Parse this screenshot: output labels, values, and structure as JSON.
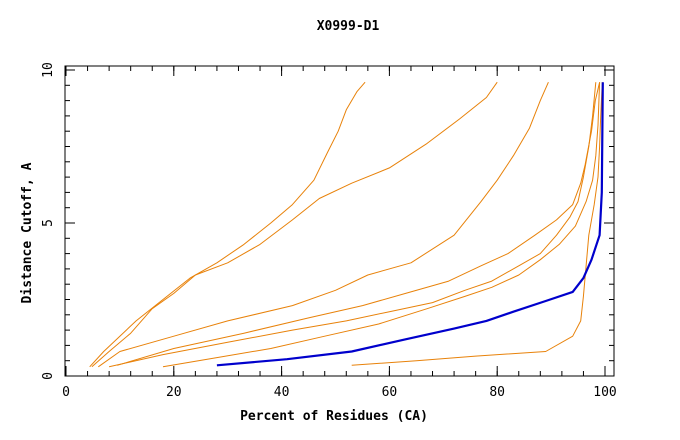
{
  "chart_data": {
    "type": "line",
    "title": "X0999-D1",
    "xlabel": "Percent of Residues (CA)",
    "ylabel": "Distance Cutoff, A",
    "xlim": [
      0,
      100
    ],
    "ylim": [
      0,
      10
    ],
    "x_ticks": [
      0,
      20,
      40,
      60,
      80,
      100
    ],
    "y_ticks": [
      0,
      5,
      10
    ],
    "x_tick_labels": [
      "0",
      "20",
      "40",
      "60",
      "80",
      "100"
    ],
    "y_tick_labels": [
      "0",
      "5",
      "10"
    ],
    "grid": false,
    "legend": "none",
    "colors": {
      "model": "#e8820a",
      "highlight": "#0000cc",
      "axis": "#000000"
    },
    "series": [
      {
        "highlight": false,
        "points": [
          [
            4.4,
            0.3
          ],
          [
            7,
            0.8
          ],
          [
            13,
            1.8
          ],
          [
            18,
            2.5
          ],
          [
            23,
            3.2
          ],
          [
            28,
            3.7
          ],
          [
            33,
            4.3
          ],
          [
            38,
            5.0
          ],
          [
            42,
            5.6
          ],
          [
            46,
            6.4
          ],
          [
            48.5,
            7.3
          ],
          [
            50.5,
            8.0
          ],
          [
            52,
            8.7
          ],
          [
            54,
            9.3
          ],
          [
            55.5,
            9.6
          ]
        ]
      },
      {
        "highlight": false,
        "points": [
          [
            4.8,
            0.3
          ],
          [
            8,
            0.8
          ],
          [
            12,
            1.4
          ],
          [
            16,
            2.2
          ],
          [
            20,
            2.7
          ],
          [
            24,
            3.3
          ],
          [
            30,
            3.7
          ],
          [
            36,
            4.3
          ],
          [
            42,
            5.1
          ],
          [
            47,
            5.8
          ],
          [
            53,
            6.3
          ],
          [
            60,
            6.8
          ],
          [
            67,
            7.6
          ],
          [
            73,
            8.4
          ],
          [
            78,
            9.1
          ],
          [
            80,
            9.6
          ]
        ]
      },
      {
        "highlight": false,
        "points": [
          [
            6,
            0.3
          ],
          [
            10,
            0.8
          ],
          [
            20,
            1.3
          ],
          [
            30,
            1.8
          ],
          [
            42,
            2.3
          ],
          [
            50,
            2.8
          ],
          [
            56,
            3.3
          ],
          [
            64,
            3.7
          ],
          [
            72,
            4.6
          ],
          [
            77,
            5.7
          ],
          [
            80,
            6.4
          ],
          [
            83,
            7.2
          ],
          [
            86,
            8.1
          ],
          [
            88,
            9.0
          ],
          [
            89.5,
            9.6
          ]
        ]
      },
      {
        "highlight": false,
        "points": [
          [
            9.5,
            0.35
          ],
          [
            20,
            0.9
          ],
          [
            33,
            1.4
          ],
          [
            45,
            1.9
          ],
          [
            55,
            2.3
          ],
          [
            63,
            2.7
          ],
          [
            71,
            3.1
          ],
          [
            77,
            3.6
          ],
          [
            82,
            4.0
          ],
          [
            87,
            4.6
          ],
          [
            91,
            5.1
          ],
          [
            94,
            5.6
          ],
          [
            95.5,
            6.3
          ],
          [
            96.3,
            6.9
          ],
          [
            97.5,
            8.0
          ],
          [
            98.2,
            9.0
          ],
          [
            99,
            9.6
          ]
        ]
      },
      {
        "highlight": false,
        "points": [
          [
            8,
            0.3
          ],
          [
            18,
            0.7
          ],
          [
            30,
            1.1
          ],
          [
            42,
            1.5
          ],
          [
            52,
            1.8
          ],
          [
            60,
            2.1
          ],
          [
            68,
            2.4
          ],
          [
            74,
            2.8
          ],
          [
            79,
            3.1
          ],
          [
            84,
            3.6
          ],
          [
            88,
            4.0
          ],
          [
            91,
            4.6
          ],
          [
            93.5,
            5.2
          ],
          [
            95,
            5.7
          ],
          [
            96,
            6.5
          ],
          [
            97,
            7.5
          ],
          [
            97.7,
            8.5
          ],
          [
            98.3,
            9.6
          ]
        ]
      },
      {
        "highlight": false,
        "points": [
          [
            18,
            0.3
          ],
          [
            28,
            0.6
          ],
          [
            38,
            0.9
          ],
          [
            48,
            1.3
          ],
          [
            58,
            1.7
          ],
          [
            67,
            2.2
          ],
          [
            74,
            2.6
          ],
          [
            79,
            2.9
          ],
          [
            84,
            3.3
          ],
          [
            88,
            3.8
          ],
          [
            91.5,
            4.3
          ],
          [
            94.5,
            4.9
          ],
          [
            96.5,
            5.7
          ],
          [
            97.7,
            6.4
          ],
          [
            98.3,
            7.2
          ],
          [
            98.7,
            8.2
          ],
          [
            99,
            9.6
          ]
        ]
      },
      {
        "highlight": false,
        "points": [
          [
            53,
            0.35
          ],
          [
            65,
            0.5
          ],
          [
            76,
            0.65
          ],
          [
            89,
            0.8
          ],
          [
            94,
            1.3
          ],
          [
            95.5,
            1.8
          ],
          [
            96,
            2.6
          ],
          [
            96.5,
            3.6
          ],
          [
            97,
            4.6
          ],
          [
            98,
            5.6
          ],
          [
            98.7,
            6.5
          ],
          [
            99,
            7.5
          ],
          [
            99.2,
            8.5
          ],
          [
            99.5,
            9.6
          ]
        ]
      },
      {
        "highlight": true,
        "points": [
          [
            28,
            0.35
          ],
          [
            41,
            0.55
          ],
          [
            53,
            0.8
          ],
          [
            63,
            1.2
          ],
          [
            72,
            1.55
          ],
          [
            78,
            1.8
          ],
          [
            83,
            2.1
          ],
          [
            89,
            2.45
          ],
          [
            94,
            2.75
          ],
          [
            96,
            3.2
          ],
          [
            97.5,
            3.8
          ],
          [
            99,
            4.6
          ],
          [
            99.2,
            5.3
          ],
          [
            99.4,
            6.0
          ],
          [
            99.6,
            9.6
          ]
        ]
      }
    ]
  }
}
